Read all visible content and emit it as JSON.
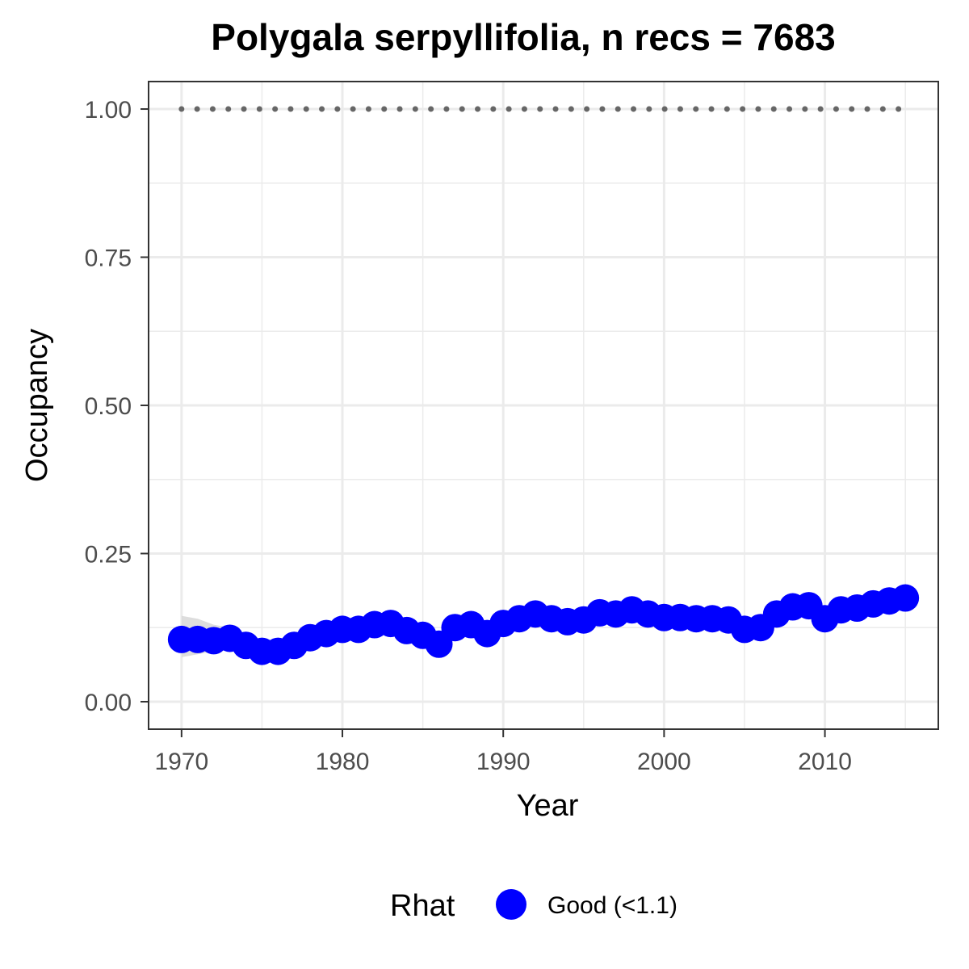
{
  "chart_data": {
    "type": "line",
    "title": "Polygala serpyllifolia, n recs = 7683",
    "xlabel": "Year",
    "ylabel": "Occupancy",
    "xlim": [
      1968,
      2017
    ],
    "ylim": [
      -0.045,
      1.045
    ],
    "x_ticks": [
      1970,
      1980,
      1990,
      2000,
      2010
    ],
    "x_minor_ticks": [
      1975,
      1985,
      1995,
      2005,
      2015
    ],
    "y_ticks": [
      0.0,
      0.25,
      0.5,
      0.75,
      1.0
    ],
    "y_tick_labels": [
      "0.00",
      "0.25",
      "0.50",
      "0.75",
      "1.00"
    ],
    "y_minor_ticks": [
      0.125,
      0.375,
      0.625,
      0.875
    ],
    "grid": true,
    "legend": {
      "title": "Rhat",
      "position": "bottom",
      "entries": [
        {
          "label": "Good (<1.1)",
          "color": "#0000ff"
        }
      ]
    },
    "series": [
      {
        "name": "Good (<1.1)",
        "color": "#0000ff",
        "x": [
          1970,
          1971,
          1972,
          1973,
          1974,
          1975,
          1976,
          1977,
          1978,
          1979,
          1980,
          1981,
          1982,
          1983,
          1984,
          1985,
          1986,
          1987,
          1988,
          1989,
          1990,
          1991,
          1992,
          1993,
          1994,
          1995,
          1996,
          1997,
          1998,
          1999,
          2000,
          2001,
          2002,
          2003,
          2004,
          2005,
          2006,
          2007,
          2008,
          2009,
          2010,
          2011,
          2012,
          2013,
          2014,
          2015
        ],
        "y": [
          0.105,
          0.105,
          0.103,
          0.107,
          0.095,
          0.085,
          0.085,
          0.095,
          0.108,
          0.115,
          0.122,
          0.122,
          0.13,
          0.132,
          0.12,
          0.112,
          0.097,
          0.125,
          0.13,
          0.115,
          0.132,
          0.14,
          0.148,
          0.14,
          0.135,
          0.138,
          0.15,
          0.148,
          0.155,
          0.148,
          0.142,
          0.142,
          0.14,
          0.14,
          0.138,
          0.122,
          0.125,
          0.148,
          0.16,
          0.162,
          0.14,
          0.155,
          0.158,
          0.165,
          0.17,
          0.175
        ],
        "upper": [
          0.145,
          0.14,
          0.13,
          0.125,
          0.108,
          0.1,
          0.1,
          0.108,
          0.12,
          0.125,
          0.13,
          0.13,
          0.138,
          0.14,
          0.128,
          0.12,
          0.105,
          0.133,
          0.138,
          0.123,
          0.14,
          0.148,
          0.156,
          0.148,
          0.143,
          0.146,
          0.158,
          0.156,
          0.163,
          0.156,
          0.15,
          0.15,
          0.148,
          0.148,
          0.146,
          0.13,
          0.133,
          0.156,
          0.168,
          0.17,
          0.148,
          0.163,
          0.166,
          0.173,
          0.178,
          0.185
        ],
        "lower": [
          0.075,
          0.08,
          0.085,
          0.09,
          0.085,
          0.075,
          0.075,
          0.085,
          0.098,
          0.105,
          0.114,
          0.114,
          0.122,
          0.124,
          0.112,
          0.104,
          0.089,
          0.117,
          0.122,
          0.107,
          0.124,
          0.132,
          0.14,
          0.132,
          0.127,
          0.13,
          0.142,
          0.14,
          0.147,
          0.14,
          0.134,
          0.134,
          0.132,
          0.132,
          0.13,
          0.114,
          0.117,
          0.14,
          0.152,
          0.154,
          0.132,
          0.147,
          0.15,
          0.157,
          0.162,
          0.165
        ]
      }
    ],
    "reference_line": {
      "y": 1.0,
      "x_range": [
        1970,
        2015
      ],
      "style": "dotted",
      "color": "#666666"
    },
    "colors": {
      "band": "#d9d9d9",
      "grid": "#ebebeb",
      "panel_border": "#333333",
      "tick": "#333333"
    }
  }
}
